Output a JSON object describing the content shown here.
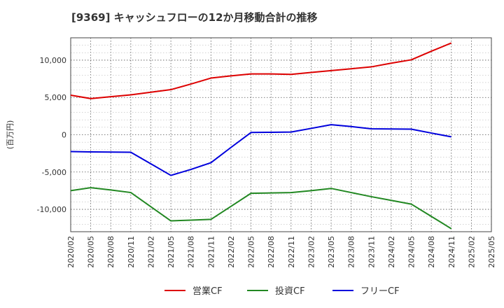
{
  "chart_data": {
    "type": "line",
    "title": "[9369]  キャッシュフローの12か月移動合計の推移",
    "xlabel": "",
    "ylabel": "(百万円)",
    "ylim": [
      -13000,
      13000
    ],
    "yticks": [
      10000,
      5000,
      0,
      -5000,
      -10000
    ],
    "ytick_labels": [
      "10,000",
      "5,000",
      "0",
      "-5,000",
      "-10,000"
    ],
    "x_categories": [
      "2020/02",
      "2020/05",
      "2020/08",
      "2020/11",
      "2021/02",
      "2021/05",
      "2021/08",
      "2021/11",
      "2022/02",
      "2022/05",
      "2022/08",
      "2022/11",
      "2023/02",
      "2023/05",
      "2023/08",
      "2023/11",
      "2024/02",
      "2024/05",
      "2024/08",
      "2024/11",
      "2025/02",
      "2025/05"
    ],
    "grid": true,
    "legend_position": "bottom",
    "series": [
      {
        "name": "営業CF",
        "color": "#dd0000",
        "values": [
          5300,
          4850,
          5100,
          5350,
          5700,
          6050,
          6800,
          7600,
          7900,
          8150,
          8150,
          8100,
          8350,
          8600,
          8850,
          9100,
          9600,
          10050,
          11200,
          12300,
          null,
          null
        ]
      },
      {
        "name": "投資CF",
        "color": "#228822",
        "values": [
          -7500,
          -7100,
          -7400,
          -7750,
          -9650,
          -11550,
          -11450,
          -11350,
          -9600,
          -7850,
          -7800,
          -7750,
          -7500,
          -7200,
          -7750,
          -8300,
          -8800,
          -9300,
          -10950,
          -12600,
          null,
          null
        ]
      },
      {
        "name": "フリーCF",
        "color": "#0000dd",
        "values": [
          -2250,
          -2300,
          -2320,
          -2350,
          -3900,
          -5450,
          -4650,
          -3750,
          -1700,
          300,
          330,
          360,
          850,
          1350,
          1100,
          800,
          780,
          750,
          230,
          -280,
          null,
          null
        ]
      }
    ]
  }
}
